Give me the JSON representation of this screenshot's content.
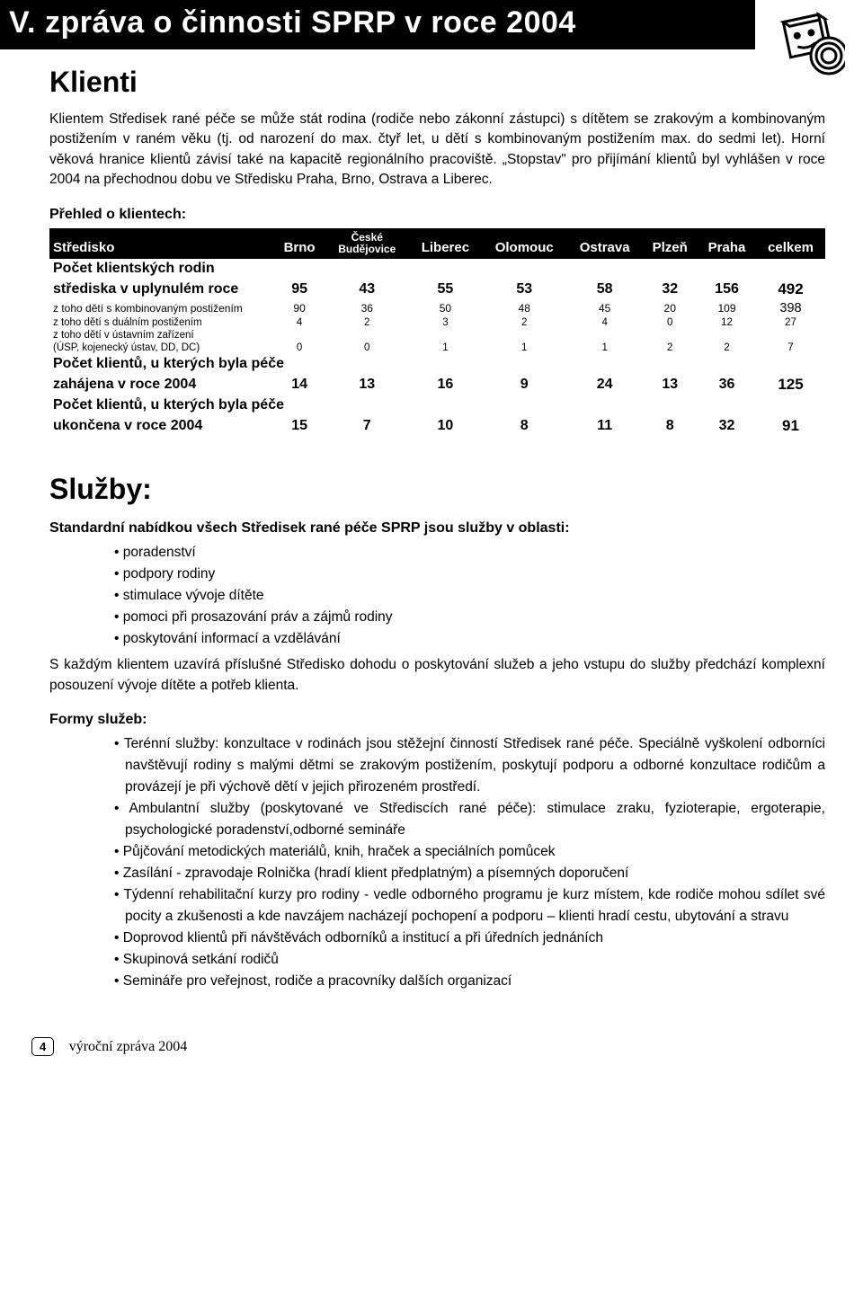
{
  "header": {
    "title": "V. zpráva o činnosti SPRP v roce 2004"
  },
  "section1": {
    "heading": "Klienti",
    "paragraph": "Klientem Středisek rané péče se může stát rodina (rodiče nebo zákonní zástupci) s dítětem se zrakovým a kombinovaným postižením v raném věku (tj. od narození do max. čtyř let, u dětí s kombinovaným postižením max. do sedmi let). Horní věková hranice klientů závisí také na kapacitě regionálního pracoviště. „Stopstav\" pro přijímání klientů byl vyhlášen v roce 2004 na přechodnou dobu ve Středisku Praha, Brno, Ostrava a Liberec."
  },
  "table": {
    "overview_label": "Přehled o klientech:",
    "header": {
      "col0": "Středisko",
      "col1": "Brno",
      "col2_top": "České",
      "col2_bottom": "Budějovice",
      "col3": "Liberec",
      "col4": "Olomouc",
      "col5": "Ostrava",
      "col6": "Plzeň",
      "col7": "Praha",
      "col8": "celkem"
    },
    "rows": [
      {
        "class": "big",
        "label_lines": [
          "Počet klientských rodin",
          "střediska v uplynulém roce"
        ],
        "vals": [
          "95",
          "43",
          "55",
          "53",
          "58",
          "32",
          "156",
          "492"
        ],
        "last_bold": true
      },
      {
        "class": "small",
        "label_lines": [
          "z toho dětí s kombinovaným postižením"
        ],
        "vals": [
          "90",
          "36",
          "50",
          "48",
          "45",
          "20",
          "109",
          "398"
        ]
      },
      {
        "class": "tiny",
        "label_lines": [
          "z toho dětí s duálním postižením"
        ],
        "vals": [
          "4",
          "2",
          "3",
          "2",
          "4",
          "0",
          "12",
          "27"
        ]
      },
      {
        "class": "tiny",
        "label_lines": [
          "z toho dětí v ústavním zařízení",
          "(ÚSP, kojenecký ústav, DD, DC)"
        ],
        "vals": [
          "0",
          "0",
          "1",
          "1",
          "1",
          "2",
          "2",
          "7"
        ]
      },
      {
        "class": "big",
        "label_lines": [
          "Počet klientů, u kterých byla péče",
          "zahájena v roce 2004"
        ],
        "vals": [
          "14",
          "13",
          "16",
          "9",
          "24",
          "13",
          "36",
          "125"
        ]
      },
      {
        "class": "big",
        "label_lines": [
          "Počet klientů, u kterých byla péče",
          "ukončena v roce 2004"
        ],
        "vals": [
          "15",
          "7",
          "10",
          "8",
          "11",
          "8",
          "32",
          "91"
        ]
      }
    ]
  },
  "services": {
    "heading": "Služby:",
    "lead1": "Standardní nabídkou všech Středisek rané péče SPRP jsou služby v oblasti:",
    "bullets1": [
      "poradenství",
      "podpory rodiny",
      "stimulace vývoje dítěte",
      "pomoci při prosazování práv a zájmů rodiny",
      "poskytování informací a vzdělávání"
    ],
    "follow1": "S každým klientem uzavírá příslušné Středisko dohodu o poskytování služeb a jeho vstupu do služby předchází komplexní posouzení vývoje dítěte a potřeb klienta.",
    "lead2": "Formy služeb:",
    "bullets2": [
      "Terénní služby: konzultace v rodinách jsou stěžejní činností Středisek rané péče. Speciálně vyškolení odborníci navštěvují rodiny s malými dětmi se zrakovým postižením, poskytují podporu a odborné konzultace rodičům a provázejí je při výchově dětí v jejich přirozeném prostředí.",
      "Ambulantní služby (poskytované ve Střediscích rané péče): stimulace zraku, fyzioterapie, ergoterapie, psychologické poradenství,odborné semináře",
      "Půjčování metodických materiálů, knih, hraček a speciálních pomůcek",
      "Zasílání - zpravodaje Rolnička (hradí klient předplatným) a písemných doporučení",
      "Týdenní rehabilitační kurzy pro rodiny - vedle odborného programu je kurz místem, kde rodiče mohou sdílet své pocity a zkušenosti a kde navzájem nacházejí pochopení a podporu – klienti hradí cestu, ubytování a stravu",
      "Doprovod klientů při návštěvách odborníků a institucí a při úředních jednáních",
      "Skupinová setkání rodičů",
      "Semináře pro veřejnost, rodiče a pracovníky dalších organizací"
    ]
  },
  "footer": {
    "page": "4",
    "text": "výroční zpráva 2004"
  },
  "colors": {
    "header_bg": "#000000",
    "header_fg": "#ffffff",
    "text": "#000000"
  }
}
